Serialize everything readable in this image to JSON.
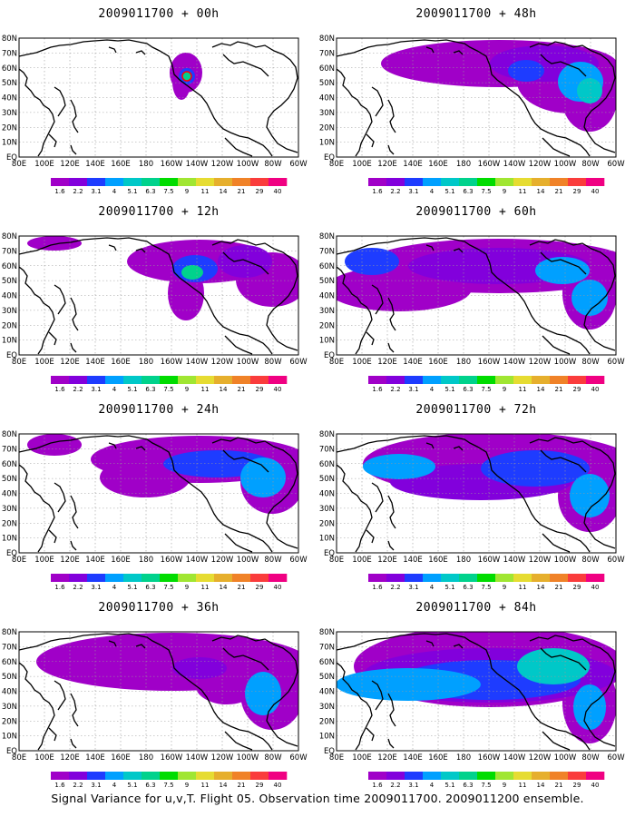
{
  "panels": [
    {
      "title": "2009011700 + 00h",
      "lead_hours": 0
    },
    {
      "title": "2009011700 + 48h",
      "lead_hours": 48
    },
    {
      "title": "2009011700 + 12h",
      "lead_hours": 12
    },
    {
      "title": "2009011700 + 60h",
      "lead_hours": 60
    },
    {
      "title": "2009011700 + 24h",
      "lead_hours": 24
    },
    {
      "title": "2009011700 + 72h",
      "lead_hours": 72
    },
    {
      "title": "2009011700 + 36h",
      "lead_hours": 36
    },
    {
      "title": "2009011700 + 84h",
      "lead_hours": 84
    }
  ],
  "lon_labels": [
    "80E",
    "100E",
    "120E",
    "140E",
    "160E",
    "180",
    "160W",
    "140W",
    "120W",
    "100W",
    "80W",
    "60W"
  ],
  "lat_labels": [
    "80N",
    "70N",
    "60N",
    "50N",
    "40N",
    "30N",
    "20N",
    "10N",
    "EQ"
  ],
  "colorbar": {
    "levels": [
      "1.6",
      "2.2",
      "3.1",
      "4",
      "5.1",
      "6.3",
      "7.5",
      "9",
      "11",
      "14",
      "21",
      "29",
      "40"
    ],
    "colors": [
      "#a000c8",
      "#8200dc",
      "#1e3cff",
      "#00a0ff",
      "#00c8c8",
      "#00d28c",
      "#00dc00",
      "#a0e632",
      "#e6dc32",
      "#e6af2d",
      "#f08228",
      "#fa3c3c",
      "#f00082"
    ]
  },
  "footer": "Signal Variance for u,v,T. Flight 05. Observation time 2009011700. 2009011200 ensemble."
}
